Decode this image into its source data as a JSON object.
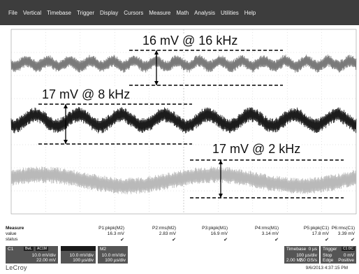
{
  "menu": [
    "File",
    "Vertical",
    "Timebase",
    "Trigger",
    "Display",
    "Cursors",
    "Measure",
    "Math",
    "Analysis",
    "Utilities",
    "Help"
  ],
  "traces": {
    "m2_label": "M2",
    "m1_label": "M1",
    "c1_label": "C1"
  },
  "annotations": {
    "a1": "16 mV @ 16 kHz",
    "a2": "17 mV @ 8 kHz",
    "a3": "17 mV @ 2 kHz"
  },
  "measure": {
    "title": "Measure",
    "row_labels": [
      "value",
      "status"
    ],
    "params": [
      {
        "name": "P1:pkpk(M2)",
        "value": "16.3 mV"
      },
      {
        "name": "P2:rms(M2)",
        "value": "2.83 mV"
      },
      {
        "name": "P3:pkpk(M1)",
        "value": "16.9 mV"
      },
      {
        "name": "P4:rms(M1)",
        "value": "3.14 mV"
      },
      {
        "name": "P5:pkpk(C1)",
        "value": "17.8 mV"
      },
      {
        "name": "P6:rms(C1)",
        "value": "3.39 mV"
      }
    ],
    "status_mark": "✔"
  },
  "channels": {
    "c1": {
      "name": "C1",
      "tags": [
        "BwL",
        "AC1M"
      ],
      "vdiv": "10.0 mV/div",
      "offset": "22.00 mV"
    },
    "f1": {
      "vdiv": "10.0 mV/div",
      "tdiv": "100 µs/div"
    },
    "m2": {
      "name": "M2",
      "vdiv": "10.0 mV/div",
      "tdiv": "100 µs/div"
    }
  },
  "timebase": {
    "label": "Timebase",
    "offset": "0 µs",
    "tdiv": "100 µs/div",
    "samples": "2.00 MS",
    "rate": "2.0 GS/s"
  },
  "trigger": {
    "label": "Trigger",
    "tag": "C1 DC",
    "mode": "Stop",
    "level": "0 mV",
    "type": "Edge",
    "slope": "Positive"
  },
  "brand": "LeCroy",
  "timestamp": "9/6/2013 4:37:15 PM",
  "colors": {
    "m2": "#7a7a7a",
    "m1": "#1c1c1c",
    "c1": "#b9b9b9",
    "menubar": "#3d3d3d"
  }
}
